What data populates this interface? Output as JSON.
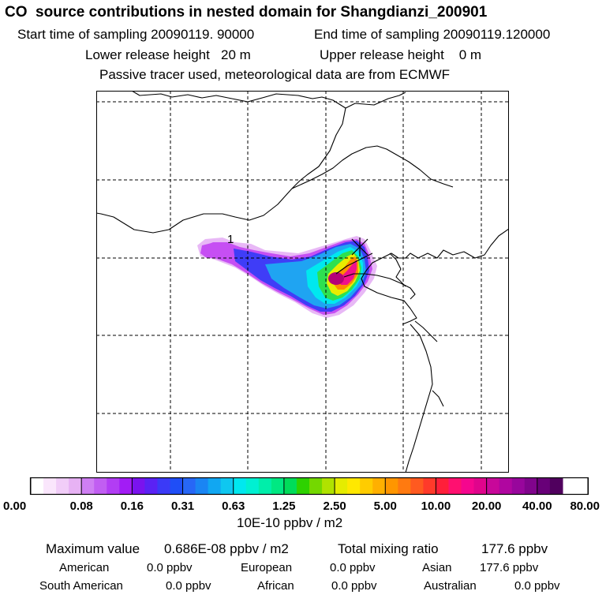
{
  "header": {
    "title": "CO  source contributions in nested domain for Shangdianzi_200901",
    "start_label": "Start time of sampling 20090119. 90000",
    "end_label": "End time of sampling 20090119.120000",
    "lower_label": "Lower release height   20 m",
    "upper_label": "Upper release height    0 m",
    "tracer_note": "Passive tracer used, meteorological data are from ECMWF"
  },
  "chart_data": {
    "type": "heatmap",
    "title": "CO  source contributions in nested domain for Shangdianzi_200901",
    "colorbar": {
      "unit": "10E-10 ppbv / m2",
      "tick_labels": [
        "0.00",
        "0.08",
        "0.16",
        "0.31",
        "0.63",
        "1.25",
        "2.50",
        "5.00",
        "10.00",
        "20.00",
        "40.00",
        "80.00"
      ],
      "levels": [
        0,
        0.08,
        0.16,
        0.31,
        0.63,
        1.25,
        2.5,
        5,
        10,
        20,
        40,
        80
      ],
      "colors": [
        "#ffffff",
        "#fae6fc",
        "#f1cdf8",
        "#e7b2f4",
        "#cf7ff3",
        "#c15ef2",
        "#b23df4",
        "#a21cf5",
        "#7a13ee",
        "#5a22f4",
        "#3b3af7",
        "#1f4ef7",
        "#2767f6",
        "#1a85f3",
        "#11a7f2",
        "#0fc7f0",
        "#00e8ef",
        "#00f0d2",
        "#00eeaa",
        "#00e882",
        "#00dc5a",
        "#2ed200",
        "#74d800",
        "#b0e200",
        "#e5ec00",
        "#ffe800",
        "#ffcc00",
        "#ffb000",
        "#ff9600",
        "#ff7a10",
        "#ff5a20",
        "#ff3a2a",
        "#ff1f3a",
        "#ff1070",
        "#f5068e",
        "#e0048c",
        "#c8089a",
        "#b006a0",
        "#98069c",
        "#80048c",
        "#680078",
        "#50005e"
      ]
    },
    "plume_levels": [
      0.16,
      0.31,
      0.63,
      1.25,
      2.5,
      5,
      10,
      20,
      40
    ],
    "plume_colors": [
      "#e8b8f6",
      "#c64ff3",
      "#3f3df7",
      "#1fa4f2",
      "#00e8ef",
      "#2ee050",
      "#e9ec00",
      "#ff8c00",
      "#f0108c"
    ],
    "peak_color": "#b40078",
    "station_marker": "Shangdianzi",
    "marker_label": "1"
  },
  "stats": {
    "max_label": "Maximum value",
    "max_value": "0.686E-08 ppbv / m2",
    "total_label": "Total mixing ratio",
    "total_value": "177.6 ppbv"
  },
  "regions": [
    {
      "name": "American",
      "value": "0.0 ppbv"
    },
    {
      "name": "European",
      "value": "0.0 ppbv"
    },
    {
      "name": "Asian",
      "value": "177.6 ppbv"
    },
    {
      "name": "South American",
      "value": "0.0 ppbv"
    },
    {
      "name": "African",
      "value": "0.0 ppbv"
    },
    {
      "name": "Australian",
      "value": "0.0 ppbv"
    }
  ]
}
